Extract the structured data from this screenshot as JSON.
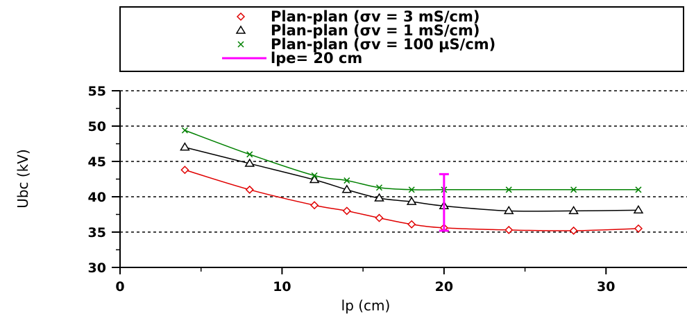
{
  "chart_data": {
    "type": "line",
    "title": "",
    "xlabel": "lp (cm)",
    "ylabel": "Ubc (kV)",
    "xlim": [
      0,
      35
    ],
    "ylim": [
      30,
      55
    ],
    "xticks": [
      0,
      10,
      20,
      30
    ],
    "yticks": [
      30,
      35,
      40,
      45,
      50,
      55
    ],
    "grid": "horizontal-dashed",
    "legend_position": "top",
    "series": [
      {
        "name": "Plan-plan (σv = 3 mS/cm)",
        "marker": "diamond",
        "color": "#e00000",
        "x": [
          4,
          8,
          12,
          14,
          16,
          18,
          20,
          24,
          28,
          32
        ],
        "y": [
          43.8,
          41.0,
          38.8,
          38.0,
          37.0,
          36.1,
          35.6,
          35.3,
          35.2,
          35.5
        ]
      },
      {
        "name": "Plan-plan (σv = 1 mS/cm)",
        "marker": "triangle",
        "color": "#000000",
        "x": [
          4,
          8,
          12,
          14,
          16,
          18,
          20,
          24,
          28,
          32
        ],
        "y": [
          47.0,
          44.7,
          42.4,
          41.0,
          39.8,
          39.3,
          38.7,
          38.0,
          38.0,
          38.1
        ]
      },
      {
        "name": "Plan-plan (σv = 100 µS/cm)",
        "marker": "x",
        "color": "#008000",
        "x": [
          4,
          8,
          12,
          14,
          16,
          18,
          20,
          24,
          28,
          32
        ],
        "y": [
          49.4,
          46.0,
          43.0,
          42.3,
          41.3,
          41.0,
          41.0,
          41.0,
          41.0,
          41.0
        ]
      }
    ],
    "annotation": {
      "name": "lpe= 20 cm",
      "color": "#ff00ff",
      "x": 20,
      "y_from": 35.2,
      "y_to": 43.2
    }
  }
}
